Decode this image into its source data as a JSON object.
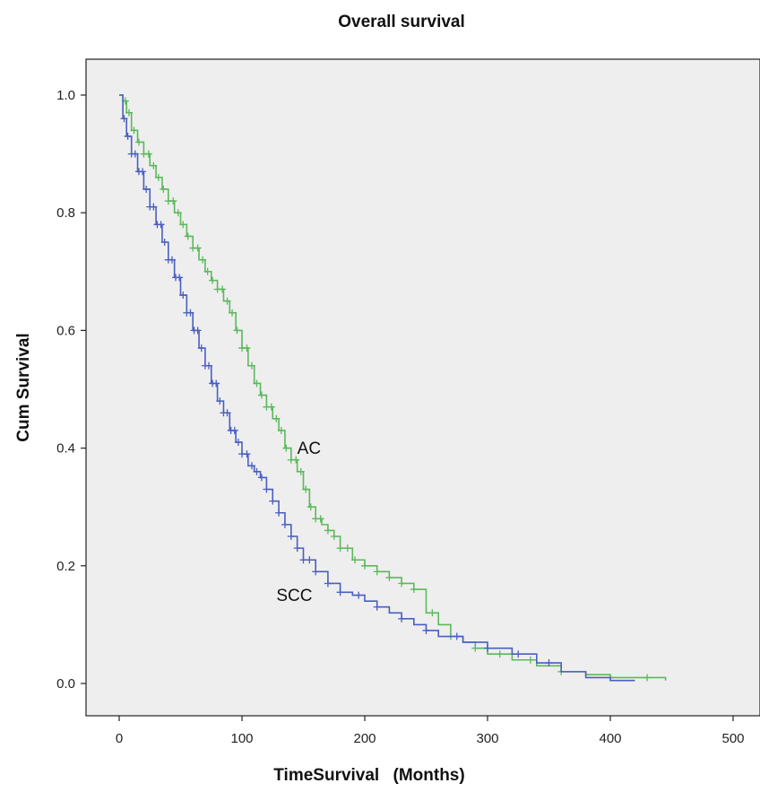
{
  "chart_data": {
    "type": "line",
    "subtype": "kaplan-meier step survival curve",
    "title": "Overall survival",
    "xlabel": "TimeSurvival",
    "xlabel_unit": "(Months)",
    "ylabel": "Cum Survival",
    "xlim": [
      0,
      500
    ],
    "ylim": [
      0,
      1
    ],
    "x_ticks": [
      0,
      100,
      200,
      300,
      400,
      500
    ],
    "y_ticks": [
      0.0,
      0.2,
      0.4,
      0.6,
      0.8,
      1.0
    ],
    "x_tick_labels": [
      "0",
      "100",
      "200",
      "300",
      "400",
      "500"
    ],
    "y_tick_labels": [
      "0.0",
      "0.2",
      "0.4",
      "0.6",
      "0.8",
      "1.0"
    ],
    "plot_background": "#eeeeee",
    "grid": false,
    "legend": "none (series labeled inline)",
    "censor_marker": "+",
    "series": [
      {
        "name": "AC",
        "color": "#5cb85c",
        "label_at": [
          145,
          0.39
        ],
        "points": [
          [
            0,
            1.0
          ],
          [
            3,
            0.99
          ],
          [
            6,
            0.97
          ],
          [
            10,
            0.94
          ],
          [
            15,
            0.92
          ],
          [
            20,
            0.9
          ],
          [
            25,
            0.88
          ],
          [
            30,
            0.86
          ],
          [
            35,
            0.84
          ],
          [
            40,
            0.82
          ],
          [
            45,
            0.8
          ],
          [
            50,
            0.78
          ],
          [
            55,
            0.76
          ],
          [
            60,
            0.74
          ],
          [
            65,
            0.72
          ],
          [
            70,
            0.7
          ],
          [
            75,
            0.685
          ],
          [
            80,
            0.67
          ],
          [
            85,
            0.65
          ],
          [
            90,
            0.63
          ],
          [
            95,
            0.6
          ],
          [
            100,
            0.57
          ],
          [
            105,
            0.54
          ],
          [
            110,
            0.51
          ],
          [
            115,
            0.49
          ],
          [
            120,
            0.47
          ],
          [
            125,
            0.45
          ],
          [
            130,
            0.43
          ],
          [
            135,
            0.4
          ],
          [
            140,
            0.38
          ],
          [
            145,
            0.36
          ],
          [
            150,
            0.33
          ],
          [
            155,
            0.3
          ],
          [
            160,
            0.28
          ],
          [
            165,
            0.27
          ],
          [
            170,
            0.26
          ],
          [
            175,
            0.25
          ],
          [
            180,
            0.23
          ],
          [
            190,
            0.21
          ],
          [
            200,
            0.2
          ],
          [
            210,
            0.19
          ],
          [
            220,
            0.18
          ],
          [
            230,
            0.17
          ],
          [
            240,
            0.16
          ],
          [
            250,
            0.12
          ],
          [
            260,
            0.1
          ],
          [
            270,
            0.08
          ],
          [
            280,
            0.07
          ],
          [
            290,
            0.06
          ],
          [
            300,
            0.05
          ],
          [
            320,
            0.04
          ],
          [
            340,
            0.03
          ],
          [
            360,
            0.02
          ],
          [
            380,
            0.015
          ],
          [
            400,
            0.01
          ],
          [
            420,
            0.01
          ],
          [
            445,
            0.005
          ]
        ],
        "censor_x": [
          5,
          8,
          12,
          16,
          20,
          24,
          28,
          32,
          36,
          40,
          44,
          48,
          52,
          56,
          60,
          64,
          68,
          72,
          76,
          80,
          84,
          88,
          92,
          96,
          100,
          104,
          108,
          112,
          116,
          120,
          124,
          128,
          132,
          136,
          140,
          144,
          148,
          152,
          156,
          160,
          164,
          170,
          175,
          180,
          186,
          192,
          200,
          210,
          220,
          230,
          240,
          255,
          270,
          290,
          310,
          335,
          360,
          400,
          430
        ]
      },
      {
        "name": "SCC",
        "color": "#4a5fbf",
        "label_at": [
          128,
          0.14
        ],
        "points": [
          [
            0,
            1.0
          ],
          [
            3,
            0.96
          ],
          [
            6,
            0.93
          ],
          [
            10,
            0.9
          ],
          [
            15,
            0.87
          ],
          [
            20,
            0.84
          ],
          [
            25,
            0.81
          ],
          [
            30,
            0.78
          ],
          [
            35,
            0.75
          ],
          [
            40,
            0.72
          ],
          [
            45,
            0.69
          ],
          [
            50,
            0.66
          ],
          [
            55,
            0.63
          ],
          [
            60,
            0.6
          ],
          [
            65,
            0.57
          ],
          [
            70,
            0.54
          ],
          [
            75,
            0.51
          ],
          [
            80,
            0.48
          ],
          [
            85,
            0.46
          ],
          [
            90,
            0.43
          ],
          [
            95,
            0.41
          ],
          [
            100,
            0.39
          ],
          [
            105,
            0.37
          ],
          [
            110,
            0.36
          ],
          [
            115,
            0.35
          ],
          [
            120,
            0.33
          ],
          [
            125,
            0.31
          ],
          [
            130,
            0.29
          ],
          [
            135,
            0.27
          ],
          [
            140,
            0.25
          ],
          [
            145,
            0.23
          ],
          [
            150,
            0.21
          ],
          [
            160,
            0.19
          ],
          [
            170,
            0.17
          ],
          [
            180,
            0.155
          ],
          [
            190,
            0.15
          ],
          [
            200,
            0.14
          ],
          [
            210,
            0.13
          ],
          [
            220,
            0.12
          ],
          [
            230,
            0.11
          ],
          [
            240,
            0.1
          ],
          [
            250,
            0.09
          ],
          [
            260,
            0.08
          ],
          [
            280,
            0.07
          ],
          [
            300,
            0.06
          ],
          [
            320,
            0.05
          ],
          [
            340,
            0.035
          ],
          [
            360,
            0.02
          ],
          [
            380,
            0.01
          ],
          [
            400,
            0.005
          ],
          [
            420,
            0.005
          ]
        ],
        "censor_x": [
          4,
          7,
          10,
          13,
          16,
          19,
          22,
          25,
          28,
          31,
          34,
          37,
          40,
          43,
          46,
          49,
          52,
          55,
          58,
          61,
          64,
          67,
          70,
          73,
          76,
          79,
          82,
          85,
          88,
          91,
          94,
          97,
          100,
          104,
          108,
          112,
          116,
          120,
          125,
          130,
          135,
          140,
          145,
          150,
          155,
          160,
          170,
          180,
          195,
          210,
          230,
          250,
          275,
          300,
          325,
          350
        ]
      }
    ]
  }
}
